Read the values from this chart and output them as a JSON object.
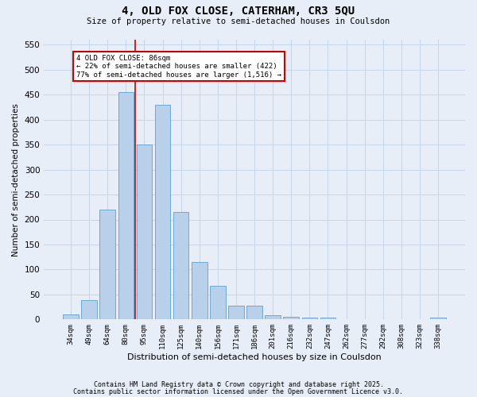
{
  "title1": "4, OLD FOX CLOSE, CATERHAM, CR3 5QU",
  "title2": "Size of property relative to semi-detached houses in Coulsdon",
  "xlabel": "Distribution of semi-detached houses by size in Coulsdon",
  "ylabel": "Number of semi-detached properties",
  "categories": [
    "34sqm",
    "49sqm",
    "64sqm",
    "80sqm",
    "95sqm",
    "110sqm",
    "125sqm",
    "140sqm",
    "156sqm",
    "171sqm",
    "186sqm",
    "201sqm",
    "216sqm",
    "232sqm",
    "247sqm",
    "262sqm",
    "277sqm",
    "292sqm",
    "308sqm",
    "323sqm",
    "338sqm"
  ],
  "values": [
    10,
    38,
    220,
    455,
    350,
    430,
    215,
    115,
    68,
    27,
    27,
    9,
    5,
    3,
    3,
    0,
    0,
    0,
    0,
    0,
    4
  ],
  "bar_color": "#b8d0ea",
  "bar_edge_color": "#6aaad4",
  "grid_color": "#c8d4e8",
  "background_color": "#e8eef8",
  "vline_x": 3.5,
  "vline_color": "#cc0000",
  "annotation_text": "4 OLD FOX CLOSE: 86sqm\n← 22% of semi-detached houses are smaller (422)\n77% of semi-detached houses are larger (1,516) →",
  "annotation_box_color": "#ffffff",
  "annotation_box_edge": "#cc0000",
  "ylim": [
    0,
    560
  ],
  "yticks": [
    0,
    50,
    100,
    150,
    200,
    250,
    300,
    350,
    400,
    450,
    500,
    550
  ],
  "footer1": "Contains HM Land Registry data © Crown copyright and database right 2025.",
  "footer2": "Contains public sector information licensed under the Open Government Licence v3.0."
}
